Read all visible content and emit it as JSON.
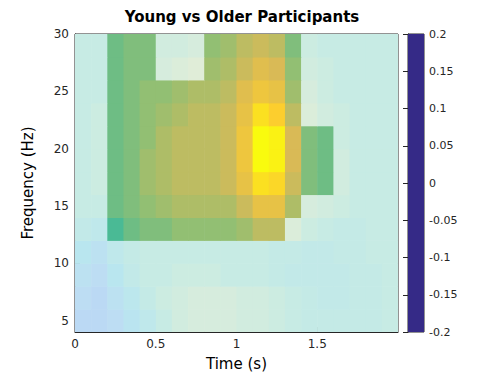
{
  "chart_data": {
    "type": "heatmap",
    "title": "Young vs Older Participants",
    "x_label": "Time (s)",
    "y_label": "Frequency (Hz)",
    "xlim": [
      0,
      2
    ],
    "xticks": [
      0,
      0.5,
      1,
      1.5
    ],
    "ylim": [
      4,
      30
    ],
    "yticks": [
      5,
      10,
      15,
      20,
      25,
      30
    ],
    "grid": false,
    "x_edges": [
      0,
      0.1,
      0.2,
      0.3,
      0.4,
      0.5,
      0.6,
      0.7,
      0.8,
      0.9,
      1.0,
      1.1,
      1.2,
      1.3,
      1.4,
      1.5,
      1.6,
      1.7,
      1.8,
      1.9,
      2.0
    ],
    "y_edges": [
      4,
      6,
      8,
      10,
      12,
      14,
      16,
      18,
      20,
      22,
      24,
      26,
      28,
      30
    ],
    "cells": [
      [
        -0.12,
        -0.12,
        -0.1,
        -0.06,
        -0.03,
        0,
        0.02,
        0.03,
        0.03,
        0.03,
        0.02,
        0.02,
        0.01,
        0,
        -0.01,
        -0.01,
        -0.01,
        -0.01,
        -0.01,
        0
      ],
      [
        -0.1,
        -0.12,
        -0.08,
        -0.04,
        -0.01,
        0.01,
        0.02,
        0.03,
        0.03,
        0.03,
        0.02,
        0.02,
        0.01,
        0,
        -0.01,
        -0.02,
        -0.02,
        -0.01,
        -0.01,
        0
      ],
      [
        -0.08,
        -0.1,
        -0.05,
        -0.02,
        0,
        0,
        0.01,
        0.01,
        0.01,
        0,
        0,
        0,
        -0.01,
        -0.02,
        -0.02,
        -0.02,
        -0.02,
        -0.01,
        -0.01,
        0
      ],
      [
        -0.05,
        -0.08,
        -0.03,
        -0.01,
        0,
        0,
        0,
        0,
        0,
        0,
        0,
        0,
        -0.01,
        -0.01,
        -0.02,
        -0.02,
        -0.01,
        -0.01,
        0,
        0
      ],
      [
        -0.02,
        -0.03,
        0.01,
        0.03,
        0.04,
        0.04,
        0.05,
        0.05,
        0.05,
        0.05,
        0.06,
        0.08,
        0.08,
        0.04,
        0.01,
        0,
        -0.01,
        -0.01,
        0,
        0
      ],
      [
        0,
        0,
        0.03,
        0.04,
        0.05,
        0.06,
        0.07,
        0.07,
        0.07,
        0.07,
        0.09,
        0.12,
        0.12,
        0.07,
        0.03,
        0.02,
        0.01,
        0,
        0,
        0
      ],
      [
        0,
        0.01,
        0.03,
        0.04,
        0.06,
        0.07,
        0.08,
        0.08,
        0.08,
        0.09,
        0.12,
        0.17,
        0.16,
        0.09,
        0.04,
        0.03,
        0.02,
        0,
        0,
        0
      ],
      [
        0,
        0.01,
        0.03,
        0.04,
        0.06,
        0.07,
        0.08,
        0.08,
        0.08,
        0.09,
        0.13,
        0.2,
        0.19,
        0.1,
        0.04,
        0.03,
        0.02,
        0,
        0,
        0
      ],
      [
        0,
        0.01,
        0.03,
        0.04,
        0.05,
        0.07,
        0.08,
        0.08,
        0.08,
        0.09,
        0.13,
        0.2,
        0.19,
        0.1,
        0.04,
        0.03,
        0.01,
        0,
        0,
        0
      ],
      [
        0,
        0.01,
        0.03,
        0.04,
        0.05,
        0.06,
        0.07,
        0.08,
        0.08,
        0.09,
        0.12,
        0.17,
        0.15,
        0.08,
        0.04,
        0.02,
        0.01,
        0,
        0,
        0
      ],
      [
        0,
        0,
        0.03,
        0.04,
        0.05,
        0.05,
        0.06,
        0.07,
        0.07,
        0.08,
        0.11,
        0.13,
        0.12,
        0.06,
        0.03,
        0.01,
        0,
        0,
        0,
        0
      ],
      [
        0,
        0,
        0.03,
        0.04,
        0.04,
        0.03,
        0.04,
        0.05,
        0.06,
        0.07,
        0.09,
        0.11,
        0.1,
        0.05,
        0.02,
        0.01,
        0,
        0,
        0,
        0
      ],
      [
        0,
        0,
        0.03,
        0.04,
        0.04,
        0.02,
        0.02,
        0.03,
        0.05,
        0.06,
        0.08,
        0.09,
        0.08,
        0.04,
        0.01,
        0,
        0,
        0,
        0,
        0
      ]
    ],
    "significant": [
      [
        0,
        0,
        0,
        0,
        0,
        0,
        0,
        0,
        0,
        0,
        0,
        0,
        0,
        0,
        0,
        0,
        0,
        0,
        0,
        0
      ],
      [
        0,
        0,
        0,
        0,
        0,
        0,
        0,
        0,
        0,
        0,
        0,
        0,
        0,
        0,
        0,
        0,
        0,
        0,
        0,
        0
      ],
      [
        0,
        0,
        0,
        0,
        0,
        0,
        0,
        0,
        0,
        0,
        0,
        0,
        0,
        0,
        0,
        0,
        0,
        0,
        0,
        0
      ],
      [
        0,
        0,
        0,
        0,
        0,
        0,
        0,
        0,
        0,
        0,
        0,
        0,
        0,
        0,
        0,
        0,
        0,
        0,
        0,
        0
      ],
      [
        0,
        0,
        1,
        1,
        1,
        1,
        1,
        1,
        1,
        1,
        1,
        1,
        1,
        0,
        0,
        0,
        0,
        0,
        0,
        0
      ],
      [
        0,
        0,
        1,
        1,
        1,
        1,
        1,
        1,
        1,
        1,
        1,
        1,
        1,
        1,
        0,
        0,
        0,
        0,
        0,
        0
      ],
      [
        0,
        0,
        1,
        1,
        1,
        1,
        1,
        1,
        1,
        1,
        1,
        1,
        1,
        1,
        1,
        1,
        0,
        0,
        0,
        0
      ],
      [
        0,
        0,
        1,
        1,
        1,
        1,
        1,
        1,
        1,
        1,
        1,
        1,
        1,
        1,
        1,
        1,
        0,
        0,
        0,
        0
      ],
      [
        0,
        0,
        1,
        1,
        1,
        1,
        1,
        1,
        1,
        1,
        1,
        1,
        1,
        1,
        1,
        1,
        0,
        0,
        0,
        0
      ],
      [
        0,
        0,
        1,
        1,
        1,
        1,
        1,
        1,
        1,
        1,
        1,
        1,
        1,
        1,
        0,
        0,
        0,
        0,
        0,
        0
      ],
      [
        0,
        0,
        1,
        1,
        1,
        1,
        1,
        1,
        1,
        1,
        1,
        1,
        1,
        1,
        0,
        0,
        0,
        0,
        0,
        0
      ],
      [
        0,
        0,
        1,
        1,
        1,
        0,
        0,
        0,
        1,
        1,
        1,
        1,
        1,
        1,
        0,
        0,
        0,
        0,
        0,
        0
      ],
      [
        0,
        0,
        1,
        1,
        1,
        0,
        0,
        0,
        1,
        1,
        1,
        1,
        1,
        1,
        0,
        0,
        0,
        0,
        0,
        0
      ]
    ],
    "colorbar_range": [
      -0.2,
      0.2
    ],
    "colorbar_ticks": [
      -0.2,
      -0.15,
      -0.1,
      -0.05,
      0,
      0.05,
      0.1,
      0.15,
      0.2
    ]
  }
}
